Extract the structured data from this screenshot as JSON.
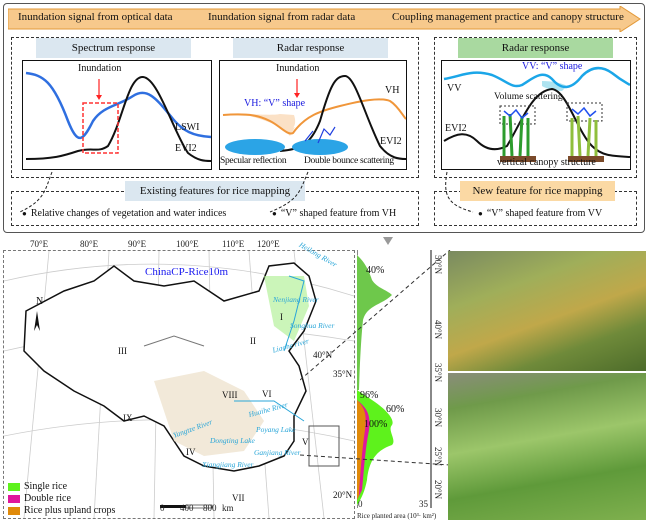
{
  "banner": {
    "steps": [
      "Inundation signal from optical data",
      "Inundation signal from radar data",
      "Coupling  management practice and canopy structure"
    ],
    "color": "#f7c98c"
  },
  "spectrum": {
    "title": "Spectrum response",
    "inundation": "Inundation",
    "lswi": "LSWI",
    "evi2": "EVI2"
  },
  "radar_vh": {
    "title": "Radar response",
    "inundation": "Inundation",
    "vh_shape": "VH: “V” shape",
    "vh": "VH",
    "evi2": "EVI2",
    "specular": "Specular reflection",
    "double": "Double bounce scattering"
  },
  "radar_vv": {
    "title": "Radar response",
    "vv_shape": "VV: “V” shape",
    "vv": "VV",
    "evi2": "EVI2",
    "volume": "Volume scattering",
    "canopy": "vertical canopy structure"
  },
  "existing": {
    "title": "Existing features for rice mapping",
    "items": [
      "Relative changes of vegetation and water indices",
      "“V” shaped feature from VH"
    ]
  },
  "new_feature": {
    "title": "New feature for rice mapping",
    "items": [
      "“V” shaped feature from VV"
    ]
  },
  "map": {
    "title": "ChinaCP-Rice10m",
    "north": "N",
    "lon_ticks": [
      "70°E",
      "80°E",
      "90°E",
      "100°E",
      "110°E",
      "120°E"
    ],
    "lat_ticks": [
      "40°N",
      "35°N",
      "20°N"
    ],
    "regions": [
      "I",
      "II",
      "III",
      "IV",
      "V",
      "VI",
      "VII",
      "VIII",
      "IX"
    ],
    "rivers": [
      "Heilong River",
      "Nenjiang River",
      "Songhua River",
      "Liaohe river",
      "Huaihe River",
      "Yangtze River",
      "Poyang Lake",
      "Dongting Lake",
      "Ganjiang River",
      "Xiangjiang River"
    ],
    "scale": {
      "labels": [
        "0",
        "400",
        "800"
      ],
      "unit": "km"
    },
    "legend": [
      {
        "label": "Single rice",
        "color": "#5ef21c"
      },
      {
        "label": "Double rice",
        "color": "#e0169c"
      },
      {
        "label": "Rice plus upland crops",
        "color": "#e08a0a"
      }
    ]
  },
  "profile": {
    "lat_ticks": [
      "50°N",
      "40°N",
      "35°N",
      "30°N",
      "25°N",
      "20°N"
    ],
    "xlabel": "Rice planted area (10³· km²)",
    "x_ticks": [
      "0",
      "35"
    ],
    "pct": [
      "40%",
      "96%",
      "60%",
      "100%"
    ]
  }
}
